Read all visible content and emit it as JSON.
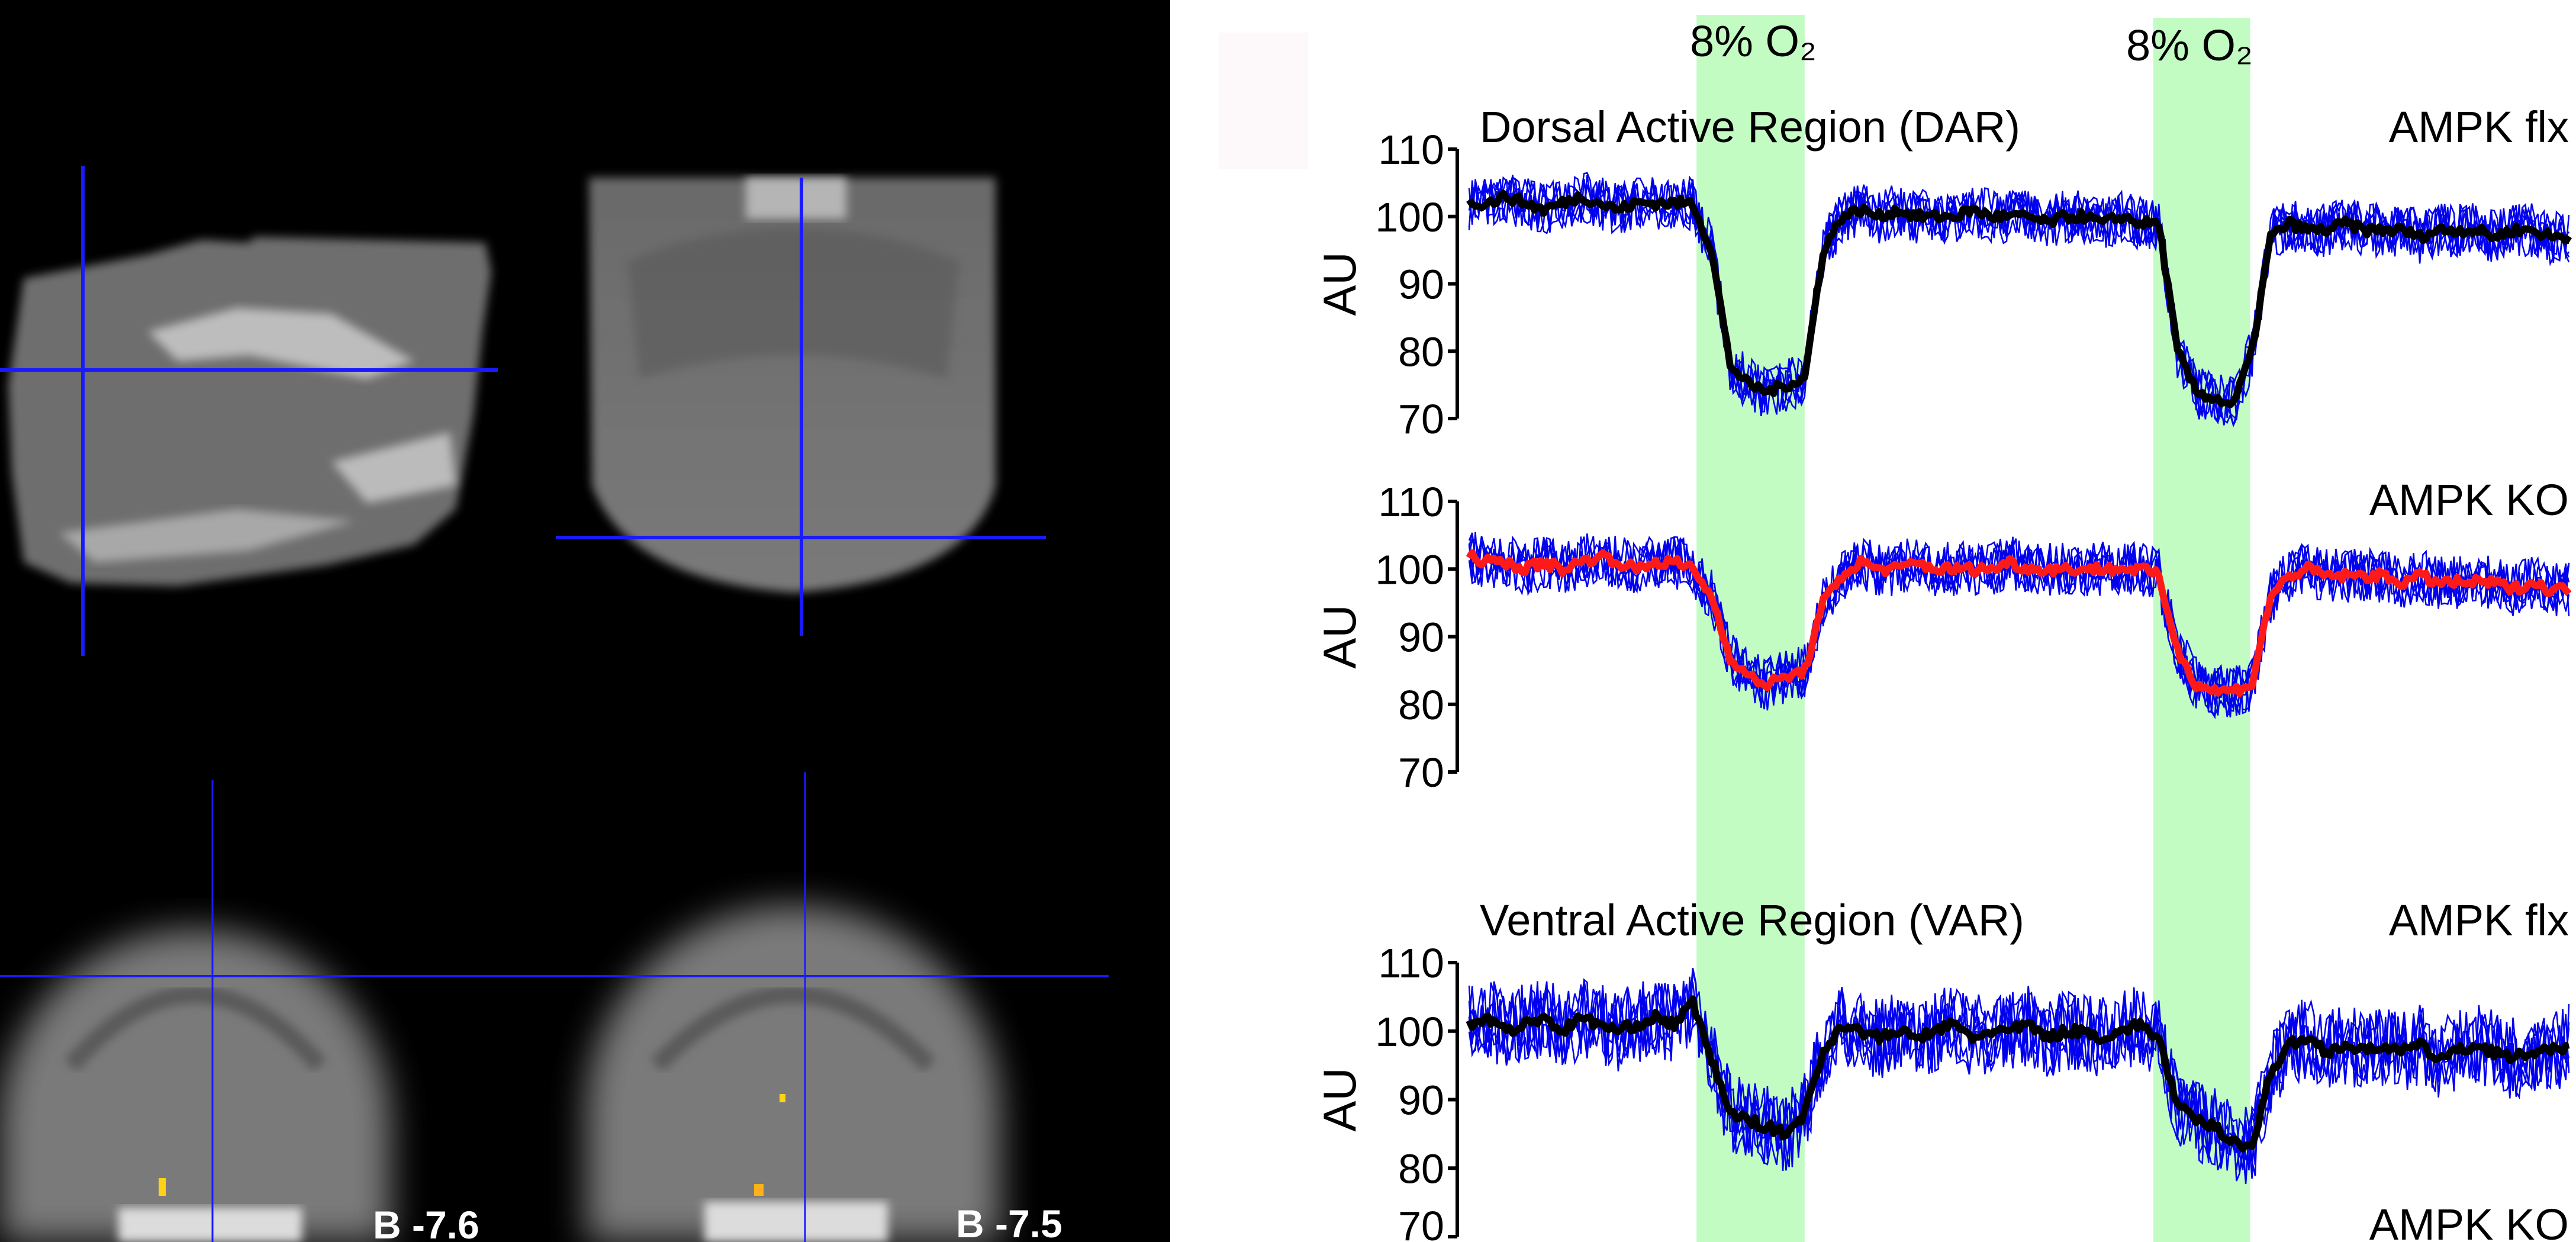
{
  "colors": {
    "background_left": "#000000",
    "crosshair": "#1a1aff",
    "stimulus_band": "#c3fcc3",
    "individual_traces": "#0000ee",
    "mean_flx": "#000000",
    "mean_ko": "#ff1a1a",
    "activation": "#ffd21a"
  },
  "images": {
    "slice_labels": [
      "B -7.6",
      "B -7.5"
    ]
  },
  "stimulus_label": "8% O₂",
  "chart_data": [
    {
      "type": "line",
      "title": "Dorsal Active Region (DAR)",
      "group_label": "AMPK flx",
      "ylabel": "AU",
      "ylim": [
        70,
        110
      ],
      "yticks": [
        "110",
        "100",
        "90",
        "80",
        "70"
      ],
      "grid": false,
      "stimulus_windows_samples": [
        [
          12.2,
          18.0
        ],
        [
          36.7,
          41.9
        ]
      ],
      "series": [
        {
          "mean_color": "flx",
          "mean": [
            102,
            102,
            103,
            102,
            101,
            102,
            103,
            102,
            101,
            102,
            102,
            102,
            102,
            95,
            78,
            75,
            74,
            75,
            76,
            95,
            100,
            101,
            100,
            101,
            100,
            100,
            100,
            101,
            100,
            100,
            100,
            99,
            100,
            100,
            99,
            100,
            99,
            99,
            80,
            74,
            73,
            72,
            80,
            97,
            99,
            98,
            98,
            99,
            98,
            98,
            98,
            97,
            98,
            98,
            98,
            97,
            98,
            98,
            97,
            97
          ]
        }
      ],
      "individual_trace_noise": 4
    },
    {
      "type": "line",
      "title": "",
      "group_label": "AMPK KO",
      "ylabel": "AU",
      "ylim": [
        70,
        110
      ],
      "yticks": [
        "110",
        "100",
        "90",
        "80",
        "70"
      ],
      "grid": false,
      "stimulus_windows_samples": [
        [
          12.2,
          18.0
        ],
        [
          36.7,
          41.9
        ]
      ],
      "series": [
        {
          "mean_color": "ko",
          "mean": [
            102,
            101,
            101,
            100,
            101,
            100,
            101,
            102,
            101,
            100,
            101,
            101,
            100,
            96,
            87,
            84,
            83,
            84,
            85,
            95,
            99,
            101,
            100,
            100,
            101,
            100,
            100,
            100,
            100,
            101,
            100,
            100,
            100,
            100,
            100,
            100,
            100,
            99,
            88,
            83,
            82,
            82,
            83,
            96,
            99,
            100,
            99,
            99,
            99,
            99,
            98,
            99,
            98,
            98,
            98,
            98,
            97,
            98,
            97,
            97
          ]
        }
      ],
      "individual_trace_noise": 4
    },
    {
      "type": "line",
      "title": "Ventral Active Region (VAR)",
      "group_label": "AMPK flx",
      "ylabel": "AU",
      "ylim": [
        70,
        110
      ],
      "yticks": [
        "110",
        "100",
        "90",
        "80",
        "70"
      ],
      "grid": false,
      "stimulus_windows_samples": [
        [
          12.2,
          18.0
        ],
        [
          36.7,
          41.9
        ]
      ],
      "series": [
        {
          "mean_color": "flx",
          "mean": [
            101,
            102,
            100,
            101,
            102,
            100,
            102,
            101,
            100,
            101,
            102,
            101,
            104,
            96,
            88,
            87,
            86,
            85,
            88,
            97,
            101,
            100,
            99,
            100,
            99,
            100,
            101,
            99,
            100,
            100,
            101,
            99,
            100,
            100,
            99,
            100,
            101,
            99,
            89,
            87,
            86,
            84,
            83,
            94,
            98,
            99,
            97,
            98,
            97,
            98,
            97,
            98,
            96,
            97,
            98,
            97,
            96,
            97,
            97,
            98
          ]
        }
      ],
      "individual_trace_noise": 6
    }
  ],
  "next_panel_label_partial": "AMPK KO"
}
